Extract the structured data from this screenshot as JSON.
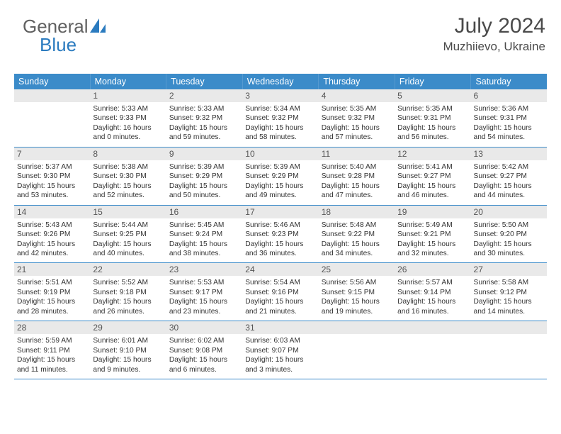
{
  "brand": {
    "part1": "General",
    "part2": "Blue"
  },
  "title": "July 2024",
  "location": "Muzhiievo, Ukraine",
  "colors": {
    "header_bg": "#3b8bc9",
    "header_text": "#ffffff",
    "daynum_bg": "#e9e9e9",
    "border": "#3b8bc9"
  },
  "weekdays": [
    "Sunday",
    "Monday",
    "Tuesday",
    "Wednesday",
    "Thursday",
    "Friday",
    "Saturday"
  ],
  "weeks": [
    [
      {
        "n": "",
        "sunrise": "",
        "sunset": "",
        "day": "",
        "day2": ""
      },
      {
        "n": "1",
        "sunrise": "Sunrise: 5:33 AM",
        "sunset": "Sunset: 9:33 PM",
        "day": "Daylight: 16 hours",
        "day2": "and 0 minutes."
      },
      {
        "n": "2",
        "sunrise": "Sunrise: 5:33 AM",
        "sunset": "Sunset: 9:32 PM",
        "day": "Daylight: 15 hours",
        "day2": "and 59 minutes."
      },
      {
        "n": "3",
        "sunrise": "Sunrise: 5:34 AM",
        "sunset": "Sunset: 9:32 PM",
        "day": "Daylight: 15 hours",
        "day2": "and 58 minutes."
      },
      {
        "n": "4",
        "sunrise": "Sunrise: 5:35 AM",
        "sunset": "Sunset: 9:32 PM",
        "day": "Daylight: 15 hours",
        "day2": "and 57 minutes."
      },
      {
        "n": "5",
        "sunrise": "Sunrise: 5:35 AM",
        "sunset": "Sunset: 9:31 PM",
        "day": "Daylight: 15 hours",
        "day2": "and 56 minutes."
      },
      {
        "n": "6",
        "sunrise": "Sunrise: 5:36 AM",
        "sunset": "Sunset: 9:31 PM",
        "day": "Daylight: 15 hours",
        "day2": "and 54 minutes."
      }
    ],
    [
      {
        "n": "7",
        "sunrise": "Sunrise: 5:37 AM",
        "sunset": "Sunset: 9:30 PM",
        "day": "Daylight: 15 hours",
        "day2": "and 53 minutes."
      },
      {
        "n": "8",
        "sunrise": "Sunrise: 5:38 AM",
        "sunset": "Sunset: 9:30 PM",
        "day": "Daylight: 15 hours",
        "day2": "and 52 minutes."
      },
      {
        "n": "9",
        "sunrise": "Sunrise: 5:39 AM",
        "sunset": "Sunset: 9:29 PM",
        "day": "Daylight: 15 hours",
        "day2": "and 50 minutes."
      },
      {
        "n": "10",
        "sunrise": "Sunrise: 5:39 AM",
        "sunset": "Sunset: 9:29 PM",
        "day": "Daylight: 15 hours",
        "day2": "and 49 minutes."
      },
      {
        "n": "11",
        "sunrise": "Sunrise: 5:40 AM",
        "sunset": "Sunset: 9:28 PM",
        "day": "Daylight: 15 hours",
        "day2": "and 47 minutes."
      },
      {
        "n": "12",
        "sunrise": "Sunrise: 5:41 AM",
        "sunset": "Sunset: 9:27 PM",
        "day": "Daylight: 15 hours",
        "day2": "and 46 minutes."
      },
      {
        "n": "13",
        "sunrise": "Sunrise: 5:42 AM",
        "sunset": "Sunset: 9:27 PM",
        "day": "Daylight: 15 hours",
        "day2": "and 44 minutes."
      }
    ],
    [
      {
        "n": "14",
        "sunrise": "Sunrise: 5:43 AM",
        "sunset": "Sunset: 9:26 PM",
        "day": "Daylight: 15 hours",
        "day2": "and 42 minutes."
      },
      {
        "n": "15",
        "sunrise": "Sunrise: 5:44 AM",
        "sunset": "Sunset: 9:25 PM",
        "day": "Daylight: 15 hours",
        "day2": "and 40 minutes."
      },
      {
        "n": "16",
        "sunrise": "Sunrise: 5:45 AM",
        "sunset": "Sunset: 9:24 PM",
        "day": "Daylight: 15 hours",
        "day2": "and 38 minutes."
      },
      {
        "n": "17",
        "sunrise": "Sunrise: 5:46 AM",
        "sunset": "Sunset: 9:23 PM",
        "day": "Daylight: 15 hours",
        "day2": "and 36 minutes."
      },
      {
        "n": "18",
        "sunrise": "Sunrise: 5:48 AM",
        "sunset": "Sunset: 9:22 PM",
        "day": "Daylight: 15 hours",
        "day2": "and 34 minutes."
      },
      {
        "n": "19",
        "sunrise": "Sunrise: 5:49 AM",
        "sunset": "Sunset: 9:21 PM",
        "day": "Daylight: 15 hours",
        "day2": "and 32 minutes."
      },
      {
        "n": "20",
        "sunrise": "Sunrise: 5:50 AM",
        "sunset": "Sunset: 9:20 PM",
        "day": "Daylight: 15 hours",
        "day2": "and 30 minutes."
      }
    ],
    [
      {
        "n": "21",
        "sunrise": "Sunrise: 5:51 AM",
        "sunset": "Sunset: 9:19 PM",
        "day": "Daylight: 15 hours",
        "day2": "and 28 minutes."
      },
      {
        "n": "22",
        "sunrise": "Sunrise: 5:52 AM",
        "sunset": "Sunset: 9:18 PM",
        "day": "Daylight: 15 hours",
        "day2": "and 26 minutes."
      },
      {
        "n": "23",
        "sunrise": "Sunrise: 5:53 AM",
        "sunset": "Sunset: 9:17 PM",
        "day": "Daylight: 15 hours",
        "day2": "and 23 minutes."
      },
      {
        "n": "24",
        "sunrise": "Sunrise: 5:54 AM",
        "sunset": "Sunset: 9:16 PM",
        "day": "Daylight: 15 hours",
        "day2": "and 21 minutes."
      },
      {
        "n": "25",
        "sunrise": "Sunrise: 5:56 AM",
        "sunset": "Sunset: 9:15 PM",
        "day": "Daylight: 15 hours",
        "day2": "and 19 minutes."
      },
      {
        "n": "26",
        "sunrise": "Sunrise: 5:57 AM",
        "sunset": "Sunset: 9:14 PM",
        "day": "Daylight: 15 hours",
        "day2": "and 16 minutes."
      },
      {
        "n": "27",
        "sunrise": "Sunrise: 5:58 AM",
        "sunset": "Sunset: 9:12 PM",
        "day": "Daylight: 15 hours",
        "day2": "and 14 minutes."
      }
    ],
    [
      {
        "n": "28",
        "sunrise": "Sunrise: 5:59 AM",
        "sunset": "Sunset: 9:11 PM",
        "day": "Daylight: 15 hours",
        "day2": "and 11 minutes."
      },
      {
        "n": "29",
        "sunrise": "Sunrise: 6:01 AM",
        "sunset": "Sunset: 9:10 PM",
        "day": "Daylight: 15 hours",
        "day2": "and 9 minutes."
      },
      {
        "n": "30",
        "sunrise": "Sunrise: 6:02 AM",
        "sunset": "Sunset: 9:08 PM",
        "day": "Daylight: 15 hours",
        "day2": "and 6 minutes."
      },
      {
        "n": "31",
        "sunrise": "Sunrise: 6:03 AM",
        "sunset": "Sunset: 9:07 PM",
        "day": "Daylight: 15 hours",
        "day2": "and 3 minutes."
      },
      {
        "n": "",
        "sunrise": "",
        "sunset": "",
        "day": "",
        "day2": ""
      },
      {
        "n": "",
        "sunrise": "",
        "sunset": "",
        "day": "",
        "day2": ""
      },
      {
        "n": "",
        "sunrise": "",
        "sunset": "",
        "day": "",
        "day2": ""
      }
    ]
  ]
}
